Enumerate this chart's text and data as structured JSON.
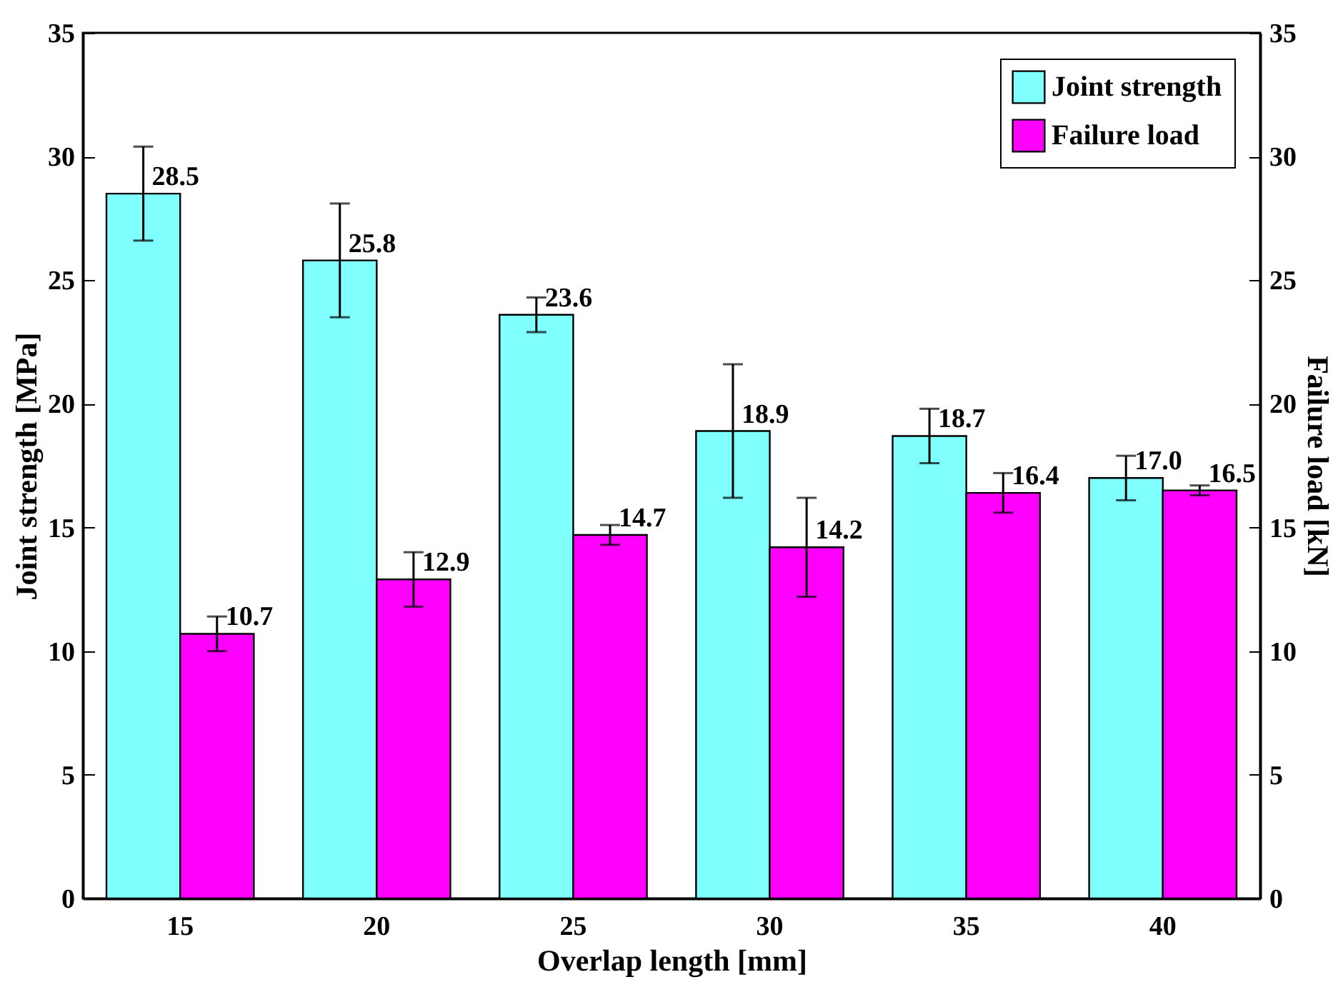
{
  "chart_data": {
    "type": "bar",
    "xlabel": "Overlap length [mm]",
    "ylabel": "Joint strength [MPa]",
    "y2label": "Failure load [kN]",
    "categories": [
      "15",
      "20",
      "25",
      "30",
      "35",
      "40"
    ],
    "series": [
      {
        "name": "Joint strength",
        "color": "#80ffff",
        "values": [
          28.5,
          25.8,
          23.6,
          18.9,
          18.7,
          17.0
        ],
        "value_labels": [
          "28.5",
          "25.8",
          "23.6",
          "18.9",
          "18.7",
          "17.0"
        ],
        "errors": [
          1.9,
          2.3,
          0.7,
          2.7,
          1.1,
          0.9
        ]
      },
      {
        "name": "Failure load",
        "color": "#ff00ff",
        "axis": "y2",
        "values": [
          10.7,
          12.9,
          14.7,
          14.2,
          16.4,
          16.5
        ],
        "value_labels": [
          "10.7",
          "12.9",
          "14.7",
          "14.2",
          "16.4",
          "16.5"
        ],
        "errors": [
          0.7,
          1.1,
          0.4,
          2.0,
          0.8,
          0.2
        ]
      }
    ],
    "ylim": [
      0,
      35
    ],
    "yticks": [
      0,
      5,
      10,
      15,
      20,
      25,
      30,
      35
    ],
    "y2lim": [
      0,
      35
    ],
    "y2ticks": [
      0,
      5,
      10,
      15,
      20,
      25,
      30,
      35
    ],
    "legend": "top right"
  }
}
